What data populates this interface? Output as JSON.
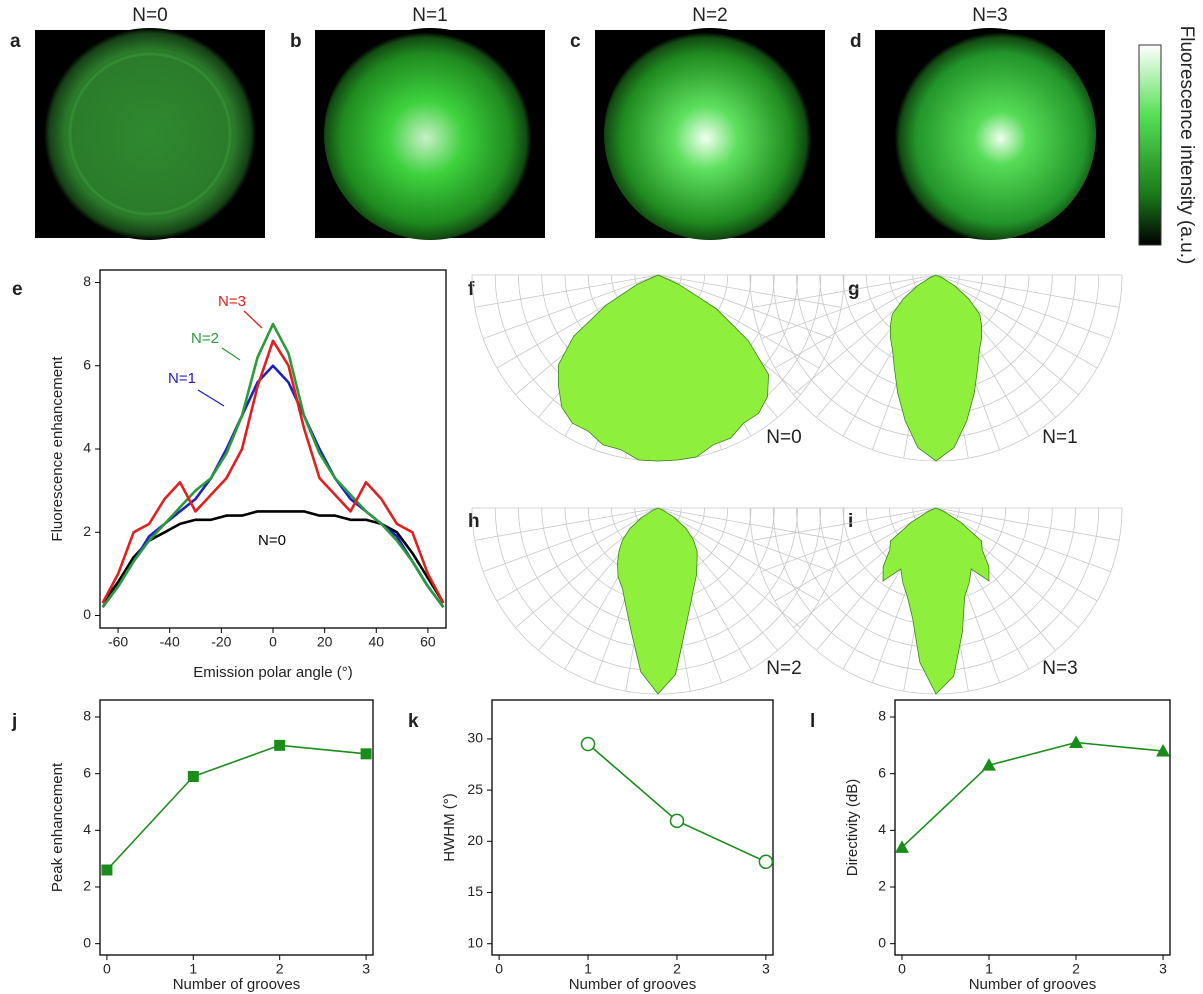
{
  "images": [
    {
      "letter": "a",
      "title": "N=0"
    },
    {
      "letter": "b",
      "title": "N=1"
    },
    {
      "letter": "c",
      "title": "N=2"
    },
    {
      "letter": "d",
      "title": "N=3"
    }
  ],
  "colorbar": {
    "label": "Fluorescence intensity (a.u.)"
  },
  "polar_letters": [
    "f",
    "g",
    "h",
    "i"
  ],
  "chart_data": [
    {
      "type": "line",
      "letter": "e",
      "xlabel": "Emission polar angle (°)",
      "ylabel": "Fluorescence enhancement",
      "x": [
        -66,
        -60,
        -54,
        -48,
        -42,
        -36,
        -30,
        -24,
        -18,
        -12,
        -6,
        0,
        6,
        12,
        18,
        24,
        30,
        36,
        42,
        48,
        54,
        60,
        66
      ],
      "series": [
        {
          "name": "N=0",
          "color": "#000000",
          "values": [
            0.3,
            0.8,
            1.4,
            1.8,
            2.0,
            2.2,
            2.3,
            2.3,
            2.4,
            2.4,
            2.5,
            2.5,
            2.5,
            2.5,
            2.4,
            2.4,
            2.3,
            2.3,
            2.2,
            2.0,
            1.5,
            0.9,
            0.3
          ]
        },
        {
          "name": "N=1",
          "color": "#2020c0",
          "values": [
            0.2,
            0.7,
            1.3,
            1.9,
            2.2,
            2.5,
            2.8,
            3.3,
            4.0,
            4.8,
            5.6,
            6.0,
            5.6,
            4.8,
            4.0,
            3.3,
            2.8,
            2.5,
            2.2,
            1.9,
            1.3,
            0.7,
            0.2
          ]
        },
        {
          "name": "N=2",
          "color": "#2a9a3a",
          "values": [
            0.2,
            0.7,
            1.3,
            1.8,
            2.2,
            2.6,
            3.0,
            3.3,
            3.9,
            4.8,
            6.2,
            7.0,
            6.3,
            4.8,
            3.9,
            3.3,
            2.9,
            2.5,
            2.2,
            1.8,
            1.3,
            0.7,
            0.2
          ]
        },
        {
          "name": "N=3",
          "color": "#e02020",
          "values": [
            0.3,
            1.0,
            2.0,
            2.2,
            2.8,
            3.2,
            2.5,
            2.9,
            3.3,
            4.0,
            5.5,
            6.6,
            6.0,
            4.5,
            3.3,
            2.9,
            2.5,
            3.2,
            2.8,
            2.2,
            2.0,
            1.0,
            0.3
          ]
        }
      ],
      "xlim": [
        -67,
        67
      ],
      "xticks": [
        -60,
        -40,
        -20,
        0,
        20,
        40,
        60
      ],
      "ylim": [
        -0.3,
        8.3
      ],
      "yticks": [
        0,
        2,
        4,
        6,
        8
      ]
    },
    {
      "type": "line",
      "letter": "j",
      "xlabel": "Number of grooves",
      "ylabel": "Peak enhancement",
      "marker": "square",
      "color": "#1a8c1a",
      "x": [
        0,
        1,
        2,
        3
      ],
      "values": [
        2.6,
        5.9,
        7.0,
        6.7
      ],
      "xlim": [
        -0.08,
        3.08
      ],
      "xticks": [
        0,
        1,
        2,
        3
      ],
      "ylim": [
        -0.4,
        8.6
      ],
      "yticks": [
        0,
        2,
        4,
        6,
        8
      ]
    },
    {
      "type": "line",
      "letter": "k",
      "xlabel": "Number of grooves",
      "ylabel": "HWHM (°)",
      "marker": "open-circle",
      "color": "#1a8c1a",
      "x": [
        0,
        1,
        2,
        3
      ],
      "values": [
        null,
        29.5,
        22,
        18
      ],
      "xlim": [
        -0.08,
        3.08
      ],
      "xticks": [
        0,
        1,
        2,
        3
      ],
      "ylim": [
        8.9,
        33.8
      ],
      "yticks": [
        10,
        15,
        20,
        25,
        30
      ]
    },
    {
      "type": "line",
      "letter": "l",
      "xlabel": "Number of grooves",
      "ylabel": "Directivity (dB)",
      "marker": "triangle",
      "color": "#1a8c1a",
      "x": [
        0,
        1,
        2,
        3
      ],
      "values": [
        3.4,
        6.3,
        7.1,
        6.8
      ],
      "xlim": [
        -0.08,
        3.08
      ],
      "xticks": [
        0,
        1,
        2,
        3
      ],
      "ylim": [
        -0.4,
        8.6
      ],
      "yticks": [
        0,
        2,
        4,
        6,
        8
      ]
    }
  ]
}
